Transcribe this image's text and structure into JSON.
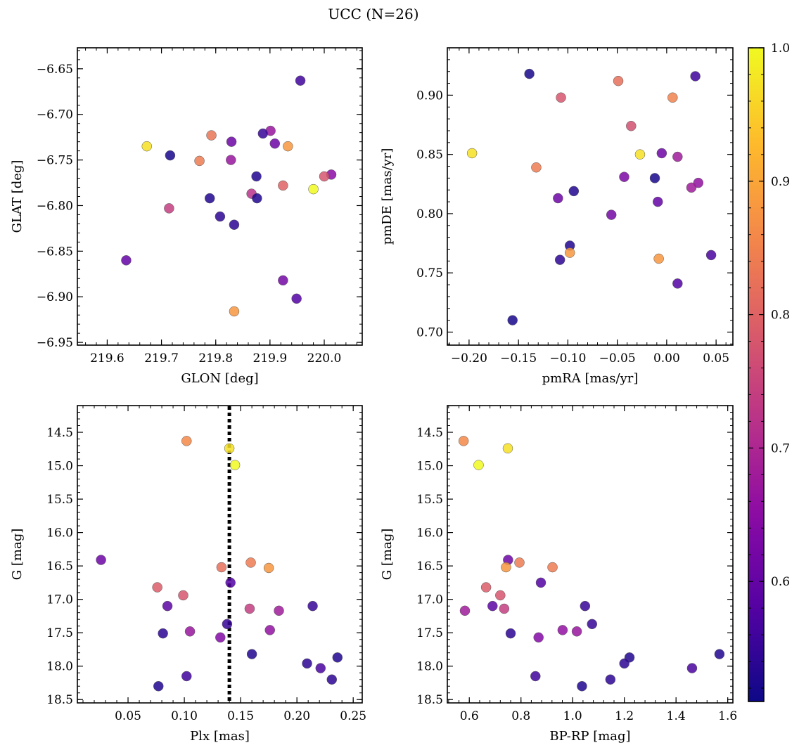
{
  "suptitle": "UCC (N=26)",
  "colorbar": {
    "range": [
      0.51,
      1.0
    ],
    "ticks": [
      0.6,
      0.7,
      0.8,
      0.9,
      1.0
    ],
    "tick_labels": [
      "0.6",
      "0.7",
      "0.8",
      "0.9",
      "1.0"
    ],
    "colormap": "plasma"
  },
  "chart_data": [
    {
      "type": "scatter",
      "xlabel": "GLON [deg]",
      "ylabel": "GLAT [deg]",
      "xlim": [
        219.545,
        220.07
      ],
      "ylim": [
        -6.953,
        -6.627
      ],
      "y_inverted": false,
      "xticks": [
        219.6,
        219.7,
        219.8,
        219.9,
        220.0
      ],
      "xtick_labels": [
        "219.6",
        "219.7",
        "219.8",
        "219.9",
        "220.0"
      ],
      "yticks": [
        -6.95,
        -6.9,
        -6.85,
        -6.8,
        -6.75,
        -6.7,
        -6.65
      ],
      "ytick_labels": [
        "−6.95",
        "−6.90",
        "−6.85",
        "−6.80",
        "−6.75",
        "−6.70",
        "−6.65"
      ],
      "points": [
        {
          "x": 219.956,
          "y": -6.663,
          "c": 0.56
        },
        {
          "x": 219.901,
          "y": -6.718,
          "c": 0.67
        },
        {
          "x": 219.887,
          "y": -6.721,
          "c": 0.55
        },
        {
          "x": 219.829,
          "y": -6.73,
          "c": 0.61
        },
        {
          "x": 219.792,
          "y": -6.723,
          "c": 0.83
        },
        {
          "x": 219.909,
          "y": -6.732,
          "c": 0.61
        },
        {
          "x": 219.933,
          "y": -6.735,
          "c": 0.88
        },
        {
          "x": 219.673,
          "y": -6.735,
          "c": 0.97
        },
        {
          "x": 219.716,
          "y": -6.745,
          "c": 0.52
        },
        {
          "x": 219.77,
          "y": -6.751,
          "c": 0.84
        },
        {
          "x": 219.828,
          "y": -6.75,
          "c": 0.67
        },
        {
          "x": 219.875,
          "y": -6.768,
          "c": 0.53
        },
        {
          "x": 220.013,
          "y": -6.766,
          "c": 0.65
        },
        {
          "x": 220.0,
          "y": -6.768,
          "c": 0.78
        },
        {
          "x": 219.924,
          "y": -6.778,
          "c": 0.8
        },
        {
          "x": 219.98,
          "y": -6.782,
          "c": 1.0
        },
        {
          "x": 219.866,
          "y": -6.787,
          "c": 0.72
        },
        {
          "x": 219.789,
          "y": -6.792,
          "c": 0.53
        },
        {
          "x": 219.876,
          "y": -6.792,
          "c": 0.53
        },
        {
          "x": 219.714,
          "y": -6.803,
          "c": 0.74
        },
        {
          "x": 219.808,
          "y": -6.812,
          "c": 0.54
        },
        {
          "x": 219.834,
          "y": -6.821,
          "c": 0.54
        },
        {
          "x": 219.635,
          "y": -6.86,
          "c": 0.6
        },
        {
          "x": 219.924,
          "y": -6.882,
          "c": 0.62
        },
        {
          "x": 219.949,
          "y": -6.902,
          "c": 0.58
        },
        {
          "x": 219.834,
          "y": -6.916,
          "c": 0.88
        }
      ]
    },
    {
      "type": "scatter",
      "xlabel": "pmRA [mas/yr]",
      "ylabel": "pmDE [mas/yr]",
      "xlim": [
        -0.222,
        0.067
      ],
      "ylim": [
        0.689,
        0.94
      ],
      "y_inverted": false,
      "xticks": [
        -0.2,
        -0.15,
        -0.1,
        -0.05,
        0.0,
        0.05
      ],
      "xtick_labels": [
        "−0.20",
        "−0.15",
        "−0.10",
        "−0.05",
        "0.00",
        "0.05"
      ],
      "yticks": [
        0.7,
        0.75,
        0.8,
        0.85,
        0.9
      ],
      "ytick_labels": [
        "0.70",
        "0.75",
        "0.80",
        "0.85",
        "0.90"
      ],
      "points": [
        {
          "x": -0.139,
          "y": 0.918,
          "c": 0.52
        },
        {
          "x": 0.029,
          "y": 0.916,
          "c": 0.56
        },
        {
          "x": -0.049,
          "y": 0.912,
          "c": 0.82
        },
        {
          "x": -0.107,
          "y": 0.898,
          "c": 0.78
        },
        {
          "x": 0.006,
          "y": 0.898,
          "c": 0.85
        },
        {
          "x": -0.036,
          "y": 0.874,
          "c": 0.77
        },
        {
          "x": -0.197,
          "y": 0.851,
          "c": 0.97
        },
        {
          "x": -0.027,
          "y": 0.85,
          "c": 0.97
        },
        {
          "x": -0.005,
          "y": 0.851,
          "c": 0.61
        },
        {
          "x": 0.011,
          "y": 0.848,
          "c": 0.68
        },
        {
          "x": -0.132,
          "y": 0.839,
          "c": 0.84
        },
        {
          "x": -0.043,
          "y": 0.831,
          "c": 0.63
        },
        {
          "x": -0.012,
          "y": 0.83,
          "c": 0.52
        },
        {
          "x": 0.032,
          "y": 0.826,
          "c": 0.66
        },
        {
          "x": 0.025,
          "y": 0.822,
          "c": 0.68
        },
        {
          "x": -0.094,
          "y": 0.819,
          "c": 0.53
        },
        {
          "x": -0.11,
          "y": 0.813,
          "c": 0.61
        },
        {
          "x": -0.009,
          "y": 0.81,
          "c": 0.6
        },
        {
          "x": -0.056,
          "y": 0.799,
          "c": 0.62
        },
        {
          "x": -0.098,
          "y": 0.773,
          "c": 0.53
        },
        {
          "x": -0.098,
          "y": 0.767,
          "c": 0.88
        },
        {
          "x": 0.045,
          "y": 0.765,
          "c": 0.57
        },
        {
          "x": -0.008,
          "y": 0.762,
          "c": 0.88
        },
        {
          "x": -0.108,
          "y": 0.761,
          "c": 0.54
        },
        {
          "x": 0.011,
          "y": 0.741,
          "c": 0.58
        },
        {
          "x": -0.156,
          "y": 0.71,
          "c": 0.52
        }
      ]
    },
    {
      "type": "scatter",
      "xlabel": "Plx [mas]",
      "ylabel": "G [mag]",
      "xlim": [
        0.005,
        0.258
      ],
      "ylim": [
        14.1,
        18.55
      ],
      "y_inverted": true,
      "vline": 0.14,
      "xticks": [
        0.05,
        0.1,
        0.15,
        0.2,
        0.25
      ],
      "xtick_labels": [
        "0.05",
        "0.10",
        "0.15",
        "0.20",
        "0.25"
      ],
      "yticks": [
        14.5,
        15.0,
        15.5,
        16.0,
        16.5,
        17.0,
        17.5,
        18.0,
        18.5
      ],
      "ytick_labels": [
        "14.5",
        "15.0",
        "15.5",
        "16.0",
        "16.5",
        "17.0",
        "17.5",
        "18.0",
        "18.5"
      ],
      "points": [
        {
          "x": 0.102,
          "y": 14.63,
          "c": 0.86
        },
        {
          "x": 0.14,
          "y": 14.74,
          "c": 0.97
        },
        {
          "x": 0.145,
          "y": 14.99,
          "c": 1.0
        },
        {
          "x": 0.026,
          "y": 16.41,
          "c": 0.61
        },
        {
          "x": 0.159,
          "y": 16.45,
          "c": 0.84
        },
        {
          "x": 0.133,
          "y": 16.52,
          "c": 0.82
        },
        {
          "x": 0.175,
          "y": 16.53,
          "c": 0.88
        },
        {
          "x": 0.141,
          "y": 16.75,
          "c": 0.58
        },
        {
          "x": 0.076,
          "y": 16.82,
          "c": 0.79
        },
        {
          "x": 0.099,
          "y": 16.94,
          "c": 0.78
        },
        {
          "x": 0.085,
          "y": 17.1,
          "c": 0.59
        },
        {
          "x": 0.214,
          "y": 17.1,
          "c": 0.55
        },
        {
          "x": 0.158,
          "y": 17.14,
          "c": 0.74
        },
        {
          "x": 0.184,
          "y": 17.17,
          "c": 0.68
        },
        {
          "x": 0.138,
          "y": 17.37,
          "c": 0.55
        },
        {
          "x": 0.176,
          "y": 17.46,
          "c": 0.66
        },
        {
          "x": 0.105,
          "y": 17.48,
          "c": 0.67
        },
        {
          "x": 0.081,
          "y": 17.51,
          "c": 0.54
        },
        {
          "x": 0.132,
          "y": 17.57,
          "c": 0.64
        },
        {
          "x": 0.16,
          "y": 17.82,
          "c": 0.53
        },
        {
          "x": 0.236,
          "y": 17.87,
          "c": 0.53
        },
        {
          "x": 0.209,
          "y": 17.96,
          "c": 0.54
        },
        {
          "x": 0.221,
          "y": 18.03,
          "c": 0.57
        },
        {
          "x": 0.102,
          "y": 18.15,
          "c": 0.56
        },
        {
          "x": 0.231,
          "y": 18.2,
          "c": 0.54
        },
        {
          "x": 0.077,
          "y": 18.3,
          "c": 0.53
        }
      ]
    },
    {
      "type": "scatter",
      "xlabel": "BP-RP [mag]",
      "ylabel": "G [mag]",
      "xlim": [
        0.515,
        1.62
      ],
      "ylim": [
        14.1,
        18.55
      ],
      "y_inverted": true,
      "xticks": [
        0.6,
        0.8,
        1.0,
        1.2,
        1.4,
        1.6
      ],
      "xtick_labels": [
        "0.6",
        "0.8",
        "1.0",
        "1.2",
        "1.4",
        "1.6"
      ],
      "yticks": [
        14.5,
        15.0,
        15.5,
        16.0,
        16.5,
        17.0,
        17.5,
        18.0,
        18.5
      ],
      "ytick_labels": [
        "14.5",
        "15.0",
        "15.5",
        "16.0",
        "16.5",
        "17.0",
        "17.5",
        "18.0",
        "18.5"
      ],
      "points": [
        {
          "x": 0.578,
          "y": 14.63,
          "c": 0.86
        },
        {
          "x": 0.749,
          "y": 14.74,
          "c": 0.97
        },
        {
          "x": 0.636,
          "y": 14.99,
          "c": 1.0
        },
        {
          "x": 0.75,
          "y": 16.41,
          "c": 0.61
        },
        {
          "x": 0.794,
          "y": 16.45,
          "c": 0.84
        },
        {
          "x": 0.742,
          "y": 16.52,
          "c": 0.88
        },
        {
          "x": 0.922,
          "y": 16.52,
          "c": 0.84
        },
        {
          "x": 0.877,
          "y": 16.75,
          "c": 0.58
        },
        {
          "x": 0.665,
          "y": 16.82,
          "c": 0.79
        },
        {
          "x": 0.72,
          "y": 16.94,
          "c": 0.78
        },
        {
          "x": 0.69,
          "y": 17.1,
          "c": 0.59
        },
        {
          "x": 1.048,
          "y": 17.1,
          "c": 0.55
        },
        {
          "x": 0.735,
          "y": 17.14,
          "c": 0.74
        },
        {
          "x": 0.583,
          "y": 17.17,
          "c": 0.68
        },
        {
          "x": 1.075,
          "y": 17.37,
          "c": 0.55
        },
        {
          "x": 0.961,
          "y": 17.46,
          "c": 0.66
        },
        {
          "x": 1.016,
          "y": 17.48,
          "c": 0.67
        },
        {
          "x": 0.76,
          "y": 17.51,
          "c": 0.54
        },
        {
          "x": 0.868,
          "y": 17.57,
          "c": 0.64
        },
        {
          "x": 1.568,
          "y": 17.82,
          "c": 0.53
        },
        {
          "x": 1.22,
          "y": 17.87,
          "c": 0.53
        },
        {
          "x": 1.2,
          "y": 17.96,
          "c": 0.54
        },
        {
          "x": 1.462,
          "y": 18.03,
          "c": 0.57
        },
        {
          "x": 0.856,
          "y": 18.15,
          "c": 0.56
        },
        {
          "x": 1.146,
          "y": 18.2,
          "c": 0.54
        },
        {
          "x": 1.036,
          "y": 18.3,
          "c": 0.53
        }
      ]
    }
  ]
}
